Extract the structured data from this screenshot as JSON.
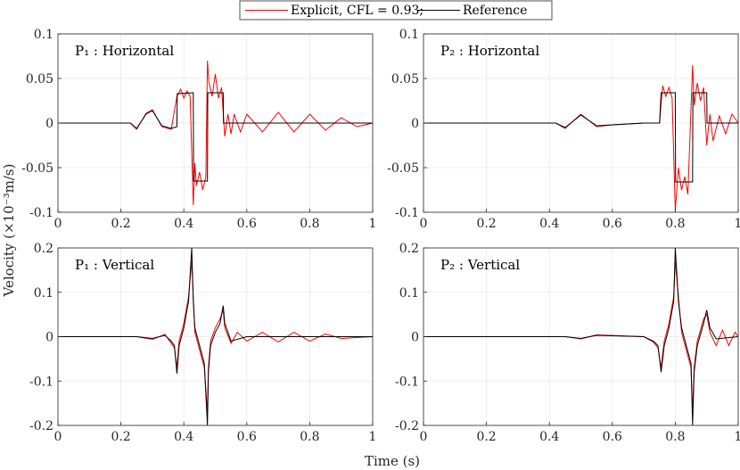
{
  "legend": {
    "entries": [
      {
        "label": "Explicit, CFL = 0.93;",
        "color": "#ff0000"
      },
      {
        "label": "Reference",
        "color": "#000000"
      }
    ]
  },
  "ylabel": "Velocity (×10⁻³m/s)",
  "xlabel": "Time (s)",
  "chart_data": [
    {
      "type": "line",
      "title": "P₁ : Horizontal",
      "xlim": [
        0,
        1
      ],
      "ylim": [
        -0.1,
        0.1
      ],
      "xticks": [
        0,
        0.2,
        0.4,
        0.6,
        0.8,
        1
      ],
      "xtick_labels": [
        "0",
        "0.2",
        "0.4",
        "0.6",
        "0.8",
        "1"
      ],
      "yticks": [
        -0.1,
        -0.05,
        0,
        0.05,
        0.1
      ],
      "ytick_labels": [
        "-0.1",
        "-0.05",
        "0",
        "0.05",
        "0.1"
      ],
      "series": [
        {
          "name": "Reference",
          "x": [
            0,
            0.23,
            0.25,
            0.28,
            0.3,
            0.33,
            0.36,
            0.378,
            0.379,
            0.43,
            0.431,
            0.475,
            0.476,
            0.525,
            0.526,
            1
          ],
          "values": [
            0,
            0,
            -0.006,
            0.01,
            0.014,
            -0.003,
            -0.006,
            -0.004,
            0.033,
            0.034,
            -0.065,
            -0.065,
            0.034,
            0.034,
            0,
            0
          ]
        },
        {
          "name": "Explicit, CFL = 0.93;",
          "x": [
            0,
            0.23,
            0.25,
            0.28,
            0.3,
            0.33,
            0.36,
            0.378,
            0.39,
            0.4,
            0.41,
            0.42,
            0.43,
            0.435,
            0.44,
            0.45,
            0.46,
            0.47,
            0.475,
            0.48,
            0.49,
            0.5,
            0.51,
            0.52,
            0.53,
            0.54,
            0.55,
            0.56,
            0.58,
            0.6,
            0.65,
            0.7,
            0.75,
            0.8,
            0.85,
            0.9,
            0.95,
            1
          ],
          "values": [
            0,
            0,
            -0.007,
            0.011,
            0.015,
            -0.004,
            -0.007,
            0.03,
            0.038,
            0.028,
            0.036,
            0.03,
            -0.092,
            -0.045,
            -0.07,
            -0.055,
            -0.075,
            -0.06,
            0.07,
            0.045,
            0.03,
            0.055,
            0.028,
            0.04,
            -0.015,
            0.01,
            -0.012,
            0.01,
            -0.01,
            0.01,
            -0.01,
            0.012,
            -0.01,
            0.01,
            -0.008,
            0.006,
            -0.004,
            0
          ]
        }
      ]
    },
    {
      "type": "line",
      "title": "P₂ : Horizontal",
      "xlim": [
        0,
        1
      ],
      "ylim": [
        -0.1,
        0.1
      ],
      "xticks": [
        0,
        0.2,
        0.4,
        0.6,
        0.8,
        1
      ],
      "xtick_labels": [
        "0",
        "0.2",
        "0.4",
        "0.6",
        "0.8",
        "1"
      ],
      "yticks": [
        -0.1,
        -0.05,
        0,
        0.05,
        0.1
      ],
      "ytick_labels": [
        "-0.1",
        "-0.05",
        "0",
        "0.05",
        "0.1"
      ],
      "series": [
        {
          "name": "Reference",
          "x": [
            0,
            0.42,
            0.45,
            0.5,
            0.55,
            0.6,
            0.7,
            0.75,
            0.755,
            0.8,
            0.801,
            0.855,
            0.856,
            0.9,
            0.901,
            1
          ],
          "values": [
            0,
            0,
            -0.005,
            0.009,
            -0.003,
            -0.002,
            0,
            0,
            0.034,
            0.034,
            -0.066,
            -0.066,
            0.034,
            0.034,
            0,
            0
          ]
        },
        {
          "name": "Explicit, CFL = 0.93;",
          "x": [
            0,
            0.42,
            0.45,
            0.5,
            0.55,
            0.6,
            0.7,
            0.75,
            0.76,
            0.77,
            0.78,
            0.79,
            0.8,
            0.81,
            0.82,
            0.83,
            0.84,
            0.855,
            0.86,
            0.87,
            0.88,
            0.89,
            0.9,
            0.91,
            0.92,
            0.94,
            0.96,
            0.98,
            1
          ],
          "values": [
            0,
            0,
            -0.006,
            0.01,
            -0.004,
            -0.002,
            0,
            0,
            0.042,
            0.03,
            0.04,
            0.028,
            -0.098,
            -0.05,
            -0.075,
            -0.06,
            -0.08,
            0.065,
            0.02,
            0.045,
            0.025,
            0.04,
            -0.025,
            0.01,
            -0.02,
            0.008,
            -0.012,
            0.01,
            0
          ]
        }
      ]
    },
    {
      "type": "line",
      "title": "P₁ : Vertical",
      "xlim": [
        0,
        1
      ],
      "ylim": [
        -0.2,
        0.2
      ],
      "xticks": [
        0,
        0.2,
        0.4,
        0.6,
        0.8,
        1
      ],
      "xtick_labels": [
        "0",
        "0.2",
        "0.4",
        "0.6",
        "0.8",
        "1"
      ],
      "yticks": [
        -0.2,
        -0.1,
        0,
        0.1,
        0.2
      ],
      "ytick_labels": [
        "-0.2",
        "-0.1",
        "0",
        "0.1",
        "0.2"
      ],
      "series": [
        {
          "name": "Reference",
          "x": [
            0,
            0.25,
            0.3,
            0.34,
            0.36,
            0.37,
            0.378,
            0.385,
            0.4,
            0.415,
            0.425,
            0.43,
            0.435,
            0.45,
            0.465,
            0.475,
            0.478,
            0.485,
            0.5,
            0.515,
            0.525,
            0.53,
            0.55,
            0.6,
            1
          ],
          "values": [
            0,
            0,
            -0.004,
            0.003,
            -0.01,
            -0.02,
            -0.083,
            -0.02,
            0.02,
            0.08,
            0.2,
            0.08,
            0.02,
            -0.02,
            -0.06,
            -0.2,
            -0.08,
            -0.02,
            0.01,
            0.03,
            0.07,
            0.03,
            -0.01,
            0,
            0
          ]
        },
        {
          "name": "Explicit, CFL = 0.93;",
          "x": [
            0,
            0.25,
            0.3,
            0.34,
            0.36,
            0.37,
            0.378,
            0.385,
            0.4,
            0.415,
            0.425,
            0.43,
            0.435,
            0.45,
            0.465,
            0.475,
            0.478,
            0.485,
            0.5,
            0.515,
            0.525,
            0.53,
            0.55,
            0.57,
            0.6,
            0.65,
            0.7,
            0.75,
            0.8,
            0.85,
            0.9,
            1
          ],
          "values": [
            0,
            0,
            -0.006,
            0.005,
            -0.015,
            -0.025,
            -0.07,
            -0.01,
            0.03,
            0.09,
            0.17,
            0.09,
            0.01,
            -0.03,
            -0.07,
            -0.17,
            -0.07,
            -0.01,
            0.02,
            0.04,
            0.06,
            0.02,
            -0.015,
            0.01,
            -0.01,
            0.01,
            -0.012,
            0.01,
            -0.01,
            0.006,
            -0.004,
            0
          ]
        }
      ]
    },
    {
      "type": "line",
      "title": "P₂ : Vertical",
      "xlim": [
        0,
        1
      ],
      "ylim": [
        -0.2,
        0.2
      ],
      "xticks": [
        0,
        0.2,
        0.4,
        0.6,
        0.8,
        1
      ],
      "xtick_labels": [
        "0",
        "0.2",
        "0.4",
        "0.6",
        "0.8",
        "1"
      ],
      "yticks": [
        -0.2,
        -0.1,
        0,
        0.1,
        0.2
      ],
      "ytick_labels": [
        "-0.2",
        "-0.1",
        "0",
        "0.1",
        "0.2"
      ],
      "series": [
        {
          "name": "Reference",
          "x": [
            0,
            0.45,
            0.5,
            0.55,
            0.7,
            0.73,
            0.745,
            0.755,
            0.765,
            0.78,
            0.795,
            0.8,
            0.81,
            0.82,
            0.835,
            0.85,
            0.855,
            0.86,
            0.87,
            0.89,
            0.9,
            0.91,
            0.93,
            1
          ],
          "values": [
            0,
            0,
            -0.004,
            0.003,
            0,
            -0.01,
            -0.02,
            -0.08,
            -0.02,
            0.02,
            0.08,
            0.2,
            0.08,
            0.02,
            -0.02,
            -0.06,
            -0.2,
            -0.08,
            -0.02,
            0.03,
            0.06,
            0.02,
            -0.005,
            0
          ]
        },
        {
          "name": "Explicit, CFL = 0.93;",
          "x": [
            0,
            0.45,
            0.5,
            0.55,
            0.7,
            0.73,
            0.745,
            0.755,
            0.765,
            0.78,
            0.795,
            0.8,
            0.81,
            0.82,
            0.835,
            0.85,
            0.855,
            0.86,
            0.87,
            0.89,
            0.9,
            0.91,
            0.93,
            0.95,
            0.97,
            0.99,
            1
          ],
          "values": [
            0,
            0,
            -0.005,
            0.004,
            0,
            -0.012,
            -0.025,
            -0.07,
            -0.01,
            0.03,
            0.09,
            0.17,
            0.09,
            0.01,
            -0.03,
            -0.07,
            -0.17,
            -0.07,
            -0.01,
            0.04,
            0.05,
            0.01,
            -0.02,
            0.015,
            -0.02,
            0.01,
            0
          ]
        }
      ]
    }
  ]
}
